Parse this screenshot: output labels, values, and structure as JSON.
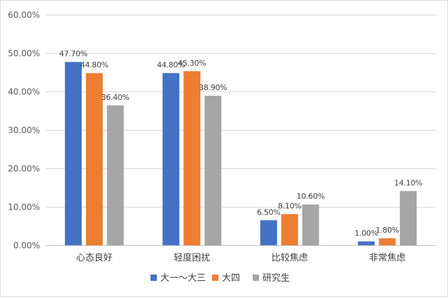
{
  "chart_data": {
    "type": "bar",
    "title": "",
    "xlabel": "",
    "ylabel": "",
    "ylim": [
      0,
      60
    ],
    "yticks": [
      0,
      10,
      20,
      30,
      40,
      50,
      60
    ],
    "ytick_labels": [
      "0.00%",
      "10.00%",
      "20.00%",
      "30.00%",
      "40.00%",
      "50.00%",
      "60.00%"
    ],
    "grid": true,
    "legend_position": "bottom",
    "categories": [
      "心态良好",
      "轻度困扰",
      "比较焦虑",
      "非常焦虑"
    ],
    "series": [
      {
        "name": "大一～大三",
        "color": "#4472C4",
        "values": [
          47.7,
          44.8,
          6.5,
          1.0
        ],
        "labels": [
          "47.70%",
          "44.80%",
          "6.50%",
          "1.00%"
        ]
      },
      {
        "name": "大四",
        "color": "#ED7D31",
        "values": [
          44.8,
          45.3,
          8.1,
          1.8
        ],
        "labels": [
          "44.80%",
          "45.30%",
          "8.10%",
          "1.80%"
        ]
      },
      {
        "name": "研究生",
        "color": "#A5A5A5",
        "values": [
          36.4,
          38.9,
          10.6,
          14.1
        ],
        "labels": [
          "36.40%",
          "38.90%",
          "10.60%",
          "14.10%"
        ]
      }
    ]
  }
}
